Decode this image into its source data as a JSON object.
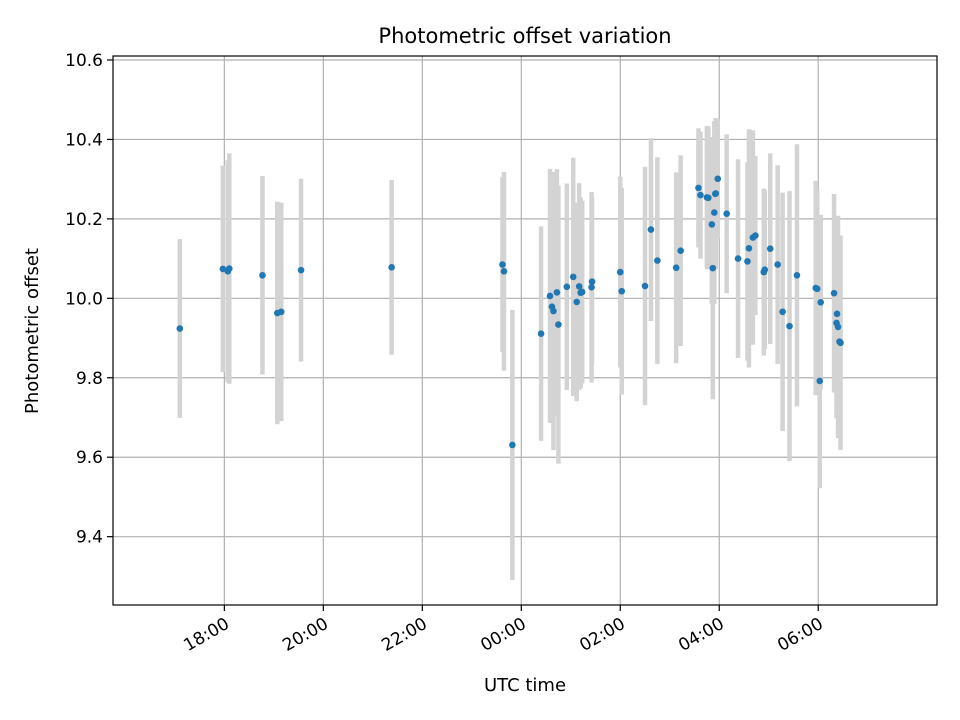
{
  "chart_data": {
    "type": "scatter",
    "title": "Photometric offset variation",
    "xlabel": "UTC time",
    "ylabel": "Photometric offset",
    "x_tick_labels": [
      "18:00",
      "20:00",
      "22:00",
      "00:00",
      "02:00",
      "04:00",
      "06:00"
    ],
    "x_tick_hours": [
      18,
      20,
      22,
      24,
      26,
      28,
      30
    ],
    "xlim_hours": [
      15.75,
      32.4
    ],
    "y_ticks": [
      9.4,
      9.6,
      9.8,
      10.0,
      10.2,
      10.4,
      10.6
    ],
    "ylim": [
      9.228,
      10.61
    ],
    "grid": true,
    "colors": {
      "point": "#1f77b4",
      "errorbar": "#d3d3d3",
      "grid": "#b0b0b0",
      "axes": "#000000"
    },
    "series": [
      {
        "x": [
          17.1,
          17.97,
          18.07,
          18.1,
          18.77,
          19.07,
          19.15,
          19.55,
          21.38,
          23.62,
          23.65,
          23.82,
          24.4,
          24.58,
          24.62,
          24.65,
          24.72,
          24.75,
          24.92,
          25.05,
          25.12,
          25.17,
          25.2,
          25.23,
          25.42,
          25.43,
          26.0,
          26.03,
          26.5,
          26.62,
          26.75,
          27.13,
          27.22,
          27.58,
          27.62,
          27.75,
          27.78,
          27.85,
          27.87,
          27.9,
          27.92,
          27.93,
          27.97,
          28.15,
          28.38,
          28.57,
          28.6,
          28.68,
          28.73,
          28.9,
          28.92,
          29.03,
          29.18,
          29.28,
          29.42,
          29.57,
          29.95,
          29.98,
          30.03,
          30.05,
          30.32,
          30.37,
          30.38,
          30.4,
          30.43,
          30.45
        ],
        "y": [
          9.924,
          10.074,
          10.068,
          10.075,
          10.058,
          9.963,
          9.966,
          10.071,
          10.078,
          10.085,
          10.068,
          9.631,
          9.911,
          10.006,
          9.979,
          9.968,
          10.015,
          9.934,
          10.029,
          10.054,
          9.991,
          10.03,
          10.014,
          10.016,
          10.028,
          10.042,
          10.066,
          10.018,
          10.031,
          10.173,
          10.095,
          10.077,
          10.12,
          10.278,
          10.26,
          10.254,
          10.253,
          10.186,
          10.076,
          10.216,
          10.263,
          10.264,
          10.301,
          10.213,
          10.1,
          10.093,
          10.126,
          10.153,
          10.158,
          10.066,
          10.072,
          10.125,
          10.085,
          9.966,
          9.93,
          10.058,
          10.026,
          10.024,
          9.792,
          9.99,
          10.013,
          9.938,
          9.961,
          9.928,
          9.891,
          9.888
        ],
        "err": [
          0.225,
          0.26,
          0.28,
          0.29,
          0.25,
          0.28,
          0.275,
          0.23,
          0.22,
          0.22,
          0.25,
          0.34,
          0.27,
          0.32,
          0.29,
          0.35,
          0.31,
          0.35,
          0.26,
          0.3,
          0.25,
          0.26,
          0.24,
          0.23,
          0.24,
          0.21,
          0.24,
          0.26,
          0.3,
          0.23,
          0.26,
          0.24,
          0.24,
          0.15,
          0.16,
          0.18,
          0.18,
          0.2,
          0.33,
          0.23,
          0.18,
          0.19,
          0.15,
          0.2,
          0.25,
          0.25,
          0.3,
          0.27,
          0.2,
          0.21,
          0.2,
          0.24,
          0.25,
          0.3,
          0.34,
          0.33,
          0.27,
          0.25,
          0.27,
          0.22,
          0.25,
          0.24,
          0.22,
          0.28,
          0.23,
          0.27
        ]
      }
    ]
  }
}
